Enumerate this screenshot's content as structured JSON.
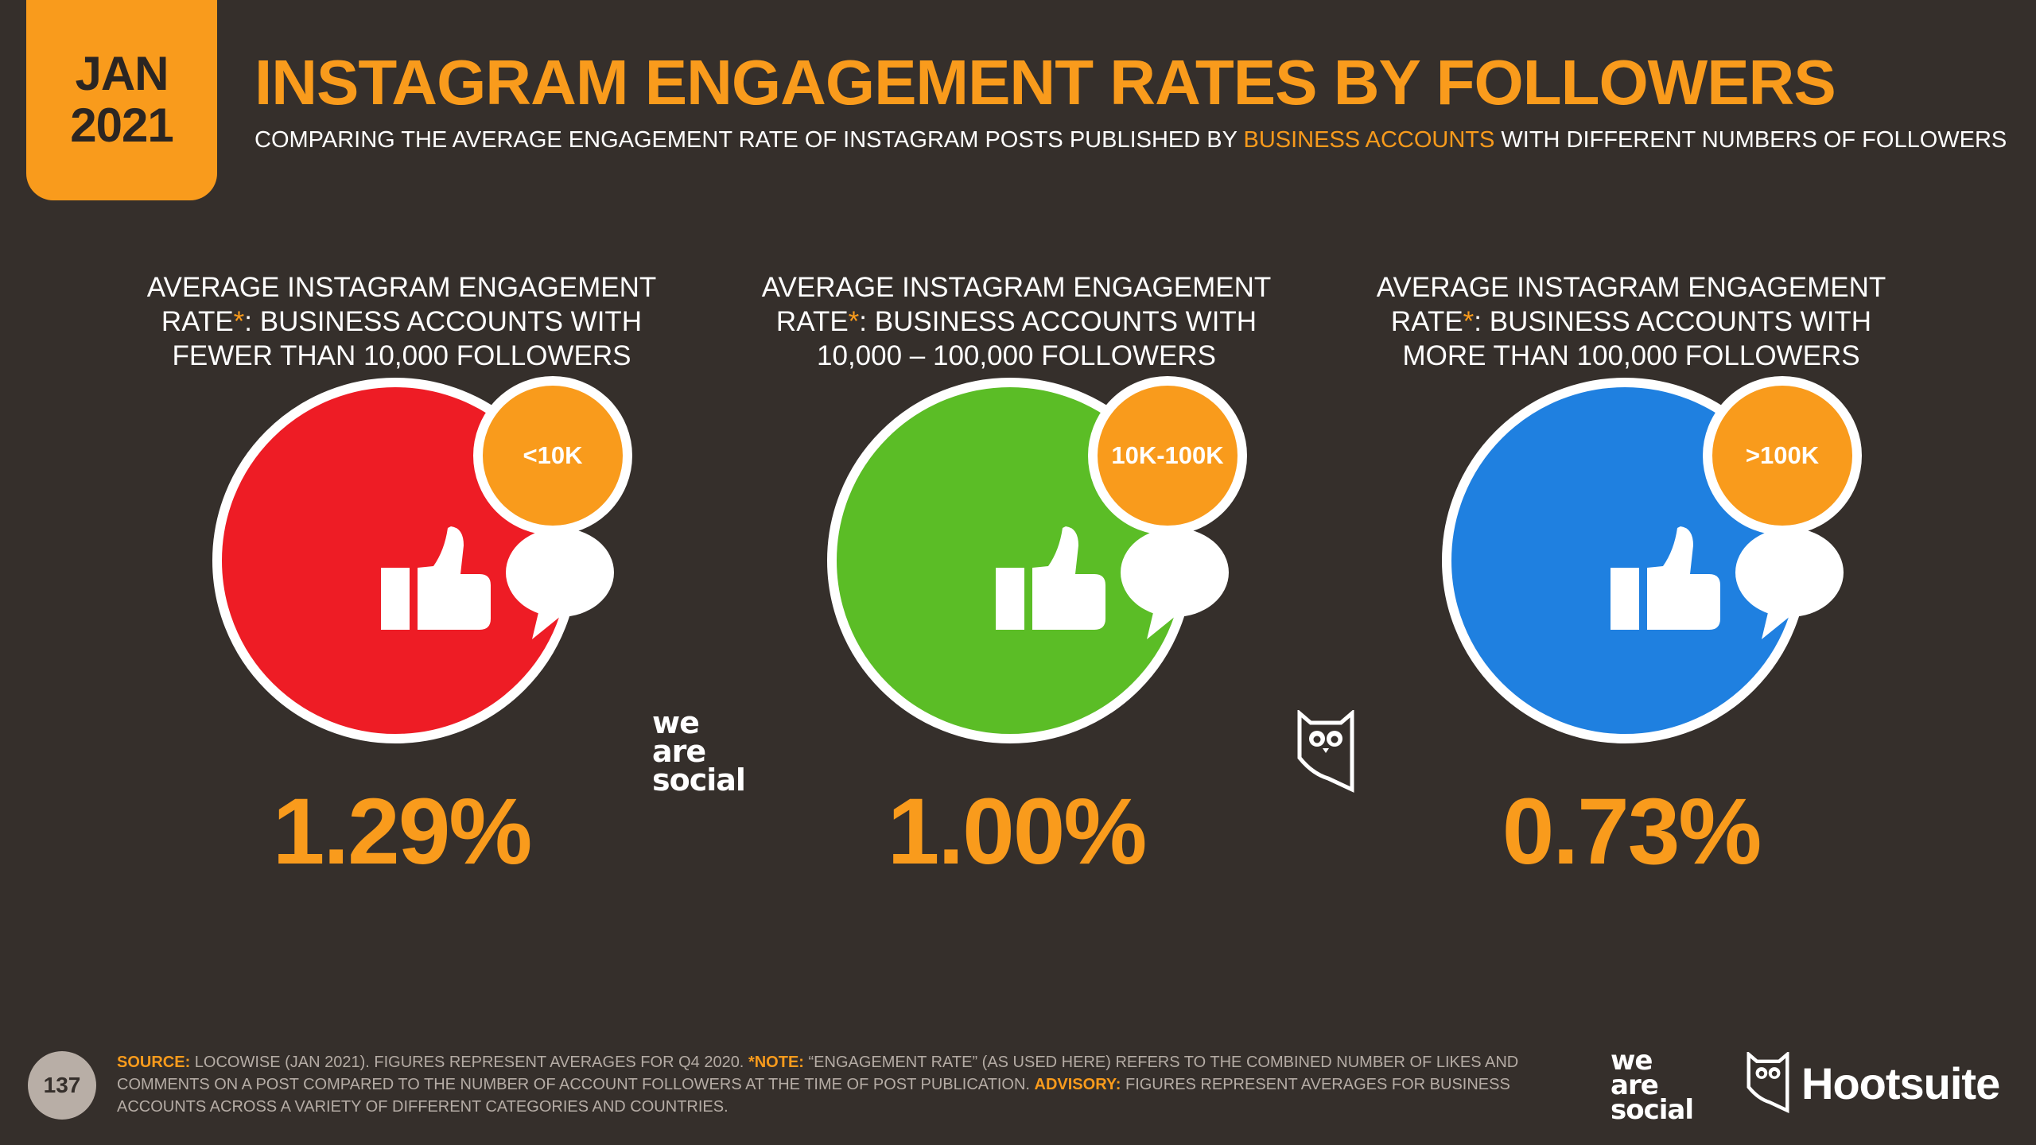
{
  "header": {
    "date_month": "JAN",
    "date_year": "2021",
    "title": "INSTAGRAM ENGAGEMENT RATES BY FOLLOWERS",
    "subtitle_pre": "COMPARING THE AVERAGE ENGAGEMENT RATE OF INSTAGRAM POSTS PUBLISHED BY ",
    "subtitle_highlight": "BUSINESS ACCOUNTS",
    "subtitle_post": " WITH DIFFERENT NUMBERS OF FOLLOWERS"
  },
  "columns": [
    {
      "label_line1": "AVERAGE INSTAGRAM ENGAGEMENT",
      "label_line2_pre": "RATE",
      "label_line2_ast": "*",
      "label_line2_post": ": BUSINESS ACCOUNTS WITH",
      "label_line3": "FEWER THAN 10,000 FOLLOWERS",
      "badge": "<10K",
      "value": "1.29%",
      "color": "#ee1c25",
      "icons": "thumbs-up-icon, speech-bubble-icon"
    },
    {
      "label_line1": "AVERAGE INSTAGRAM ENGAGEMENT",
      "label_line2_pre": "RATE",
      "label_line2_ast": "*",
      "label_line2_post": ": BUSINESS ACCOUNTS WITH",
      "label_line3": "10,000 – 100,000 FOLLOWERS",
      "badge": "10K-100K",
      "value": "1.00%",
      "color": "#5bbd26",
      "icons": "thumbs-up-icon, speech-bubble-icon"
    },
    {
      "label_line1": "AVERAGE INSTAGRAM ENGAGEMENT",
      "label_line2_pre": "RATE",
      "label_line2_ast": "*",
      "label_line2_post": ": BUSINESS ACCOUNTS WITH",
      "label_line3": "MORE THAN 100,000 FOLLOWERS",
      "badge": ">100K",
      "value": "0.73%",
      "color": "#1f80e0",
      "icons": "thumbs-up-icon, speech-bubble-icon"
    }
  ],
  "logos": {
    "we_are_social": [
      "we",
      "are",
      "social"
    ],
    "hootsuite": "Hootsuite"
  },
  "footer": {
    "page_number": "137",
    "source_label": "SOURCE:",
    "source_text": " LOCOWISE (JAN 2021). FIGURES REPRESENT AVERAGES FOR Q4 2020. ",
    "note_label": "*NOTE:",
    "note_text": " “ENGAGEMENT RATE” (AS USED HERE) REFERS TO THE COMBINED NUMBER OF LIKES AND COMMENTS ON A POST COMPARED TO THE NUMBER OF ACCOUNT FOLLOWERS AT THE TIME OF POST PUBLICATION. ",
    "advisory_label": "ADVISORY:",
    "advisory_text": " FIGURES REPRESENT AVERAGES FOR BUSINESS ACCOUNTS ACROSS A VARIETY OF DIFFERENT CATEGORIES AND COUNTRIES."
  },
  "colors": {
    "background": "#352f2b",
    "accent": "#f99b1c",
    "text": "#ffffff"
  }
}
